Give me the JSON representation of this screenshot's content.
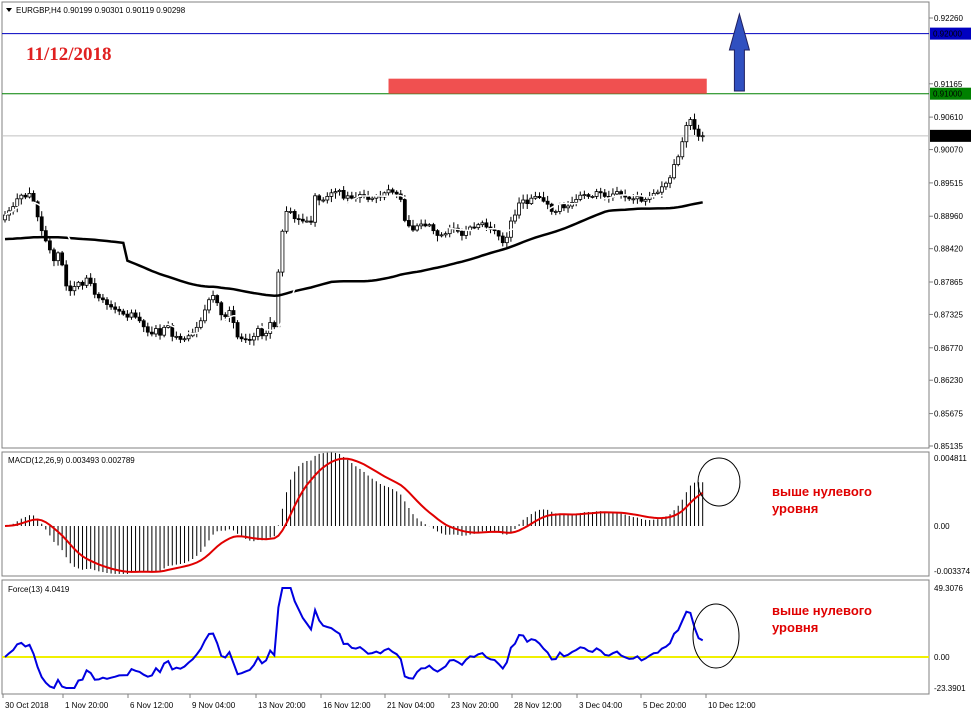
{
  "chart_data": {
    "type": "candlestick",
    "main": {
      "header": "EURGBP,H4  0.90199 0.90301 0.90119 0.90298",
      "date_annotation": "11/12/2018",
      "price_ticks": [
        "0.92260",
        "0.91165",
        "0.90610",
        "0.90070",
        "0.89515",
        "0.88960",
        "0.88420",
        "0.87865",
        "0.87325",
        "0.86770",
        "0.86230",
        "0.85675",
        "0.85135"
      ],
      "levels": [
        {
          "value": 0.92,
          "label": "0.92000",
          "color": "#0000c0"
        },
        {
          "value": 0.91,
          "label": "0.91000",
          "color": "#008000"
        }
      ],
      "current_price": {
        "value": 0.90298,
        "label": "0.90298"
      },
      "resistance_zone": {
        "from": 0.91,
        "to": 0.9125,
        "color": "#f05050"
      },
      "arrow": {
        "direction": "up",
        "color": "#3050c0"
      },
      "closes": [
        0.8898,
        0.8905,
        0.8912,
        0.8925,
        0.8931,
        0.8928,
        0.8934,
        0.892,
        0.8895,
        0.8872,
        0.8855,
        0.884,
        0.8822,
        0.8835,
        0.8815,
        0.878,
        0.8772,
        0.8779,
        0.8786,
        0.8781,
        0.8793,
        0.8784,
        0.8766,
        0.876,
        0.8757,
        0.8749,
        0.8745,
        0.8741,
        0.8738,
        0.8733,
        0.8728,
        0.8735,
        0.8728,
        0.8722,
        0.8712,
        0.8703,
        0.87,
        0.8709,
        0.8698,
        0.8711,
        0.8714,
        0.8696,
        0.8696,
        0.8691,
        0.8692,
        0.8697,
        0.8702,
        0.8711,
        0.8722,
        0.874,
        0.8757,
        0.8764,
        0.8752,
        0.8732,
        0.8729,
        0.8739,
        0.8719,
        0.8695,
        0.8692,
        0.8691,
        0.869,
        0.8696,
        0.8709,
        0.8697,
        0.8701,
        0.8719,
        0.8712,
        0.8803,
        0.8871,
        0.8904,
        0.8904,
        0.8892,
        0.8891,
        0.8888,
        0.8888,
        0.8886,
        0.893,
        0.8923,
        0.8923,
        0.8929,
        0.8935,
        0.8937,
        0.8939,
        0.8926,
        0.893,
        0.8926,
        0.8927,
        0.8932,
        0.8929,
        0.8924,
        0.8926,
        0.893,
        0.8928,
        0.8935,
        0.894,
        0.8936,
        0.8933,
        0.8924,
        0.8889,
        0.888,
        0.8873,
        0.888,
        0.8883,
        0.888,
        0.8882,
        0.8872,
        0.8864,
        0.8865,
        0.8867,
        0.8876,
        0.8876,
        0.8871,
        0.8864,
        0.8872,
        0.8878,
        0.8877,
        0.8882,
        0.8885,
        0.8878,
        0.8874,
        0.8872,
        0.8863,
        0.8852,
        0.8861,
        0.8888,
        0.8898,
        0.8918,
        0.8923,
        0.8917,
        0.8926,
        0.8929,
        0.8927,
        0.8921,
        0.8916,
        0.8904,
        0.8904,
        0.8916,
        0.891,
        0.8913,
        0.8919,
        0.8924,
        0.8931,
        0.8932,
        0.8929,
        0.8929,
        0.8937,
        0.8935,
        0.8929,
        0.8928,
        0.8933,
        0.8937,
        0.8931,
        0.8928,
        0.8925,
        0.8925,
        0.8929,
        0.8921,
        0.8924,
        0.8929,
        0.8934,
        0.8936,
        0.8945,
        0.8951,
        0.896,
        0.8982,
        0.8995,
        0.902,
        0.9047,
        0.9057,
        0.9041,
        0.9029,
        0.903
      ],
      "ma_fast_color": "#ffffff",
      "ma_slow_color": "#000000"
    },
    "macd": {
      "header": "MACD(12,26,9) 0.003493 0.002789",
      "ticks": [
        "0.004811",
        "0.00",
        "-0.003374"
      ],
      "ymax": 0.004811,
      "ymin": -0.003374,
      "annotation": "выше нулевого уровня"
    },
    "force": {
      "header": "Force(13) 4.0419",
      "ticks": [
        "49.3076",
        "0.00",
        "-23.3901"
      ],
      "ymax": 49.3076,
      "ymin": -23.3901,
      "annotation": "выше нулевого уровня"
    },
    "x_labels": [
      "30 Oct 2018",
      "1 Nov 20:00",
      "6 Nov 12:00",
      "9 Nov 04:00",
      "13 Nov 20:00",
      "16 Nov 12:00",
      "21 Nov 04:00",
      "23 Nov 20:00",
      "28 Nov 12:00",
      "3 Dec 04:00",
      "5 Dec 20:00",
      "10 Dec 12:00"
    ]
  }
}
